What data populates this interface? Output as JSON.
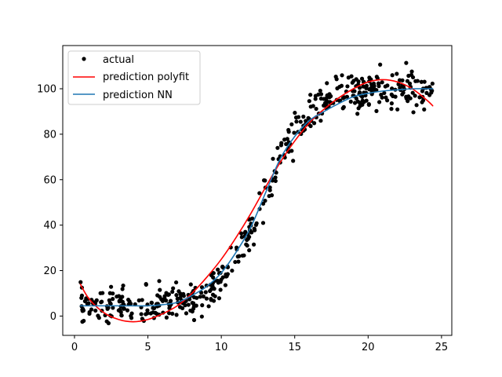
{
  "chart_data": {
    "type": "scatter",
    "title": "",
    "xlabel": "",
    "ylabel": "",
    "xlim": [
      -0.8,
      25.7
    ],
    "ylim": [
      -8.5,
      119
    ],
    "xticks": [
      0,
      5,
      10,
      15,
      20,
      25
    ],
    "yticks": [
      0,
      20,
      40,
      60,
      80,
      100
    ],
    "grid": false,
    "legend_position": "top-left",
    "series": [
      {
        "name": "actual",
        "kind": "points",
        "color": "#000000",
        "model": "logistic-with-noise",
        "x_range": [
          0.4,
          24.4
        ],
        "n_points": 500,
        "base": 4,
        "amplitude": 96,
        "midpoint": 12.9,
        "scale": 1.5,
        "noise": 4
      },
      {
        "name": "prediction polyfit",
        "kind": "line",
        "color": "#ff0000",
        "x": [
          0.4,
          1,
          2,
          3,
          4,
          5,
          6,
          7,
          8,
          9,
          10,
          11,
          12,
          13,
          14,
          15,
          16,
          17,
          18,
          19,
          20,
          21,
          22,
          23,
          24,
          24.4
        ],
        "y": [
          14,
          7.5,
          1.5,
          -1.5,
          -2.5,
          -1.5,
          1,
          4.5,
          10,
          17,
          25,
          34.5,
          45,
          56.5,
          67.5,
          77,
          85,
          91,
          96,
          100,
          103,
          104,
          103,
          100,
          95,
          92.5
        ]
      },
      {
        "name": "prediction NN",
        "kind": "line",
        "color": "#1f77b4",
        "x": [
          0.4,
          2,
          4,
          5,
          6,
          7,
          8,
          9,
          10,
          11,
          12,
          13,
          14,
          15,
          16,
          17,
          18,
          19,
          20,
          21,
          22,
          23,
          24,
          24.4
        ],
        "y": [
          4.5,
          4.5,
          4.5,
          4.5,
          5,
          6,
          9,
          13,
          19,
          28,
          39,
          54,
          69,
          79,
          86,
          90,
          93.5,
          96.5,
          98,
          99,
          99.5,
          100,
          100,
          100
        ]
      }
    ]
  }
}
